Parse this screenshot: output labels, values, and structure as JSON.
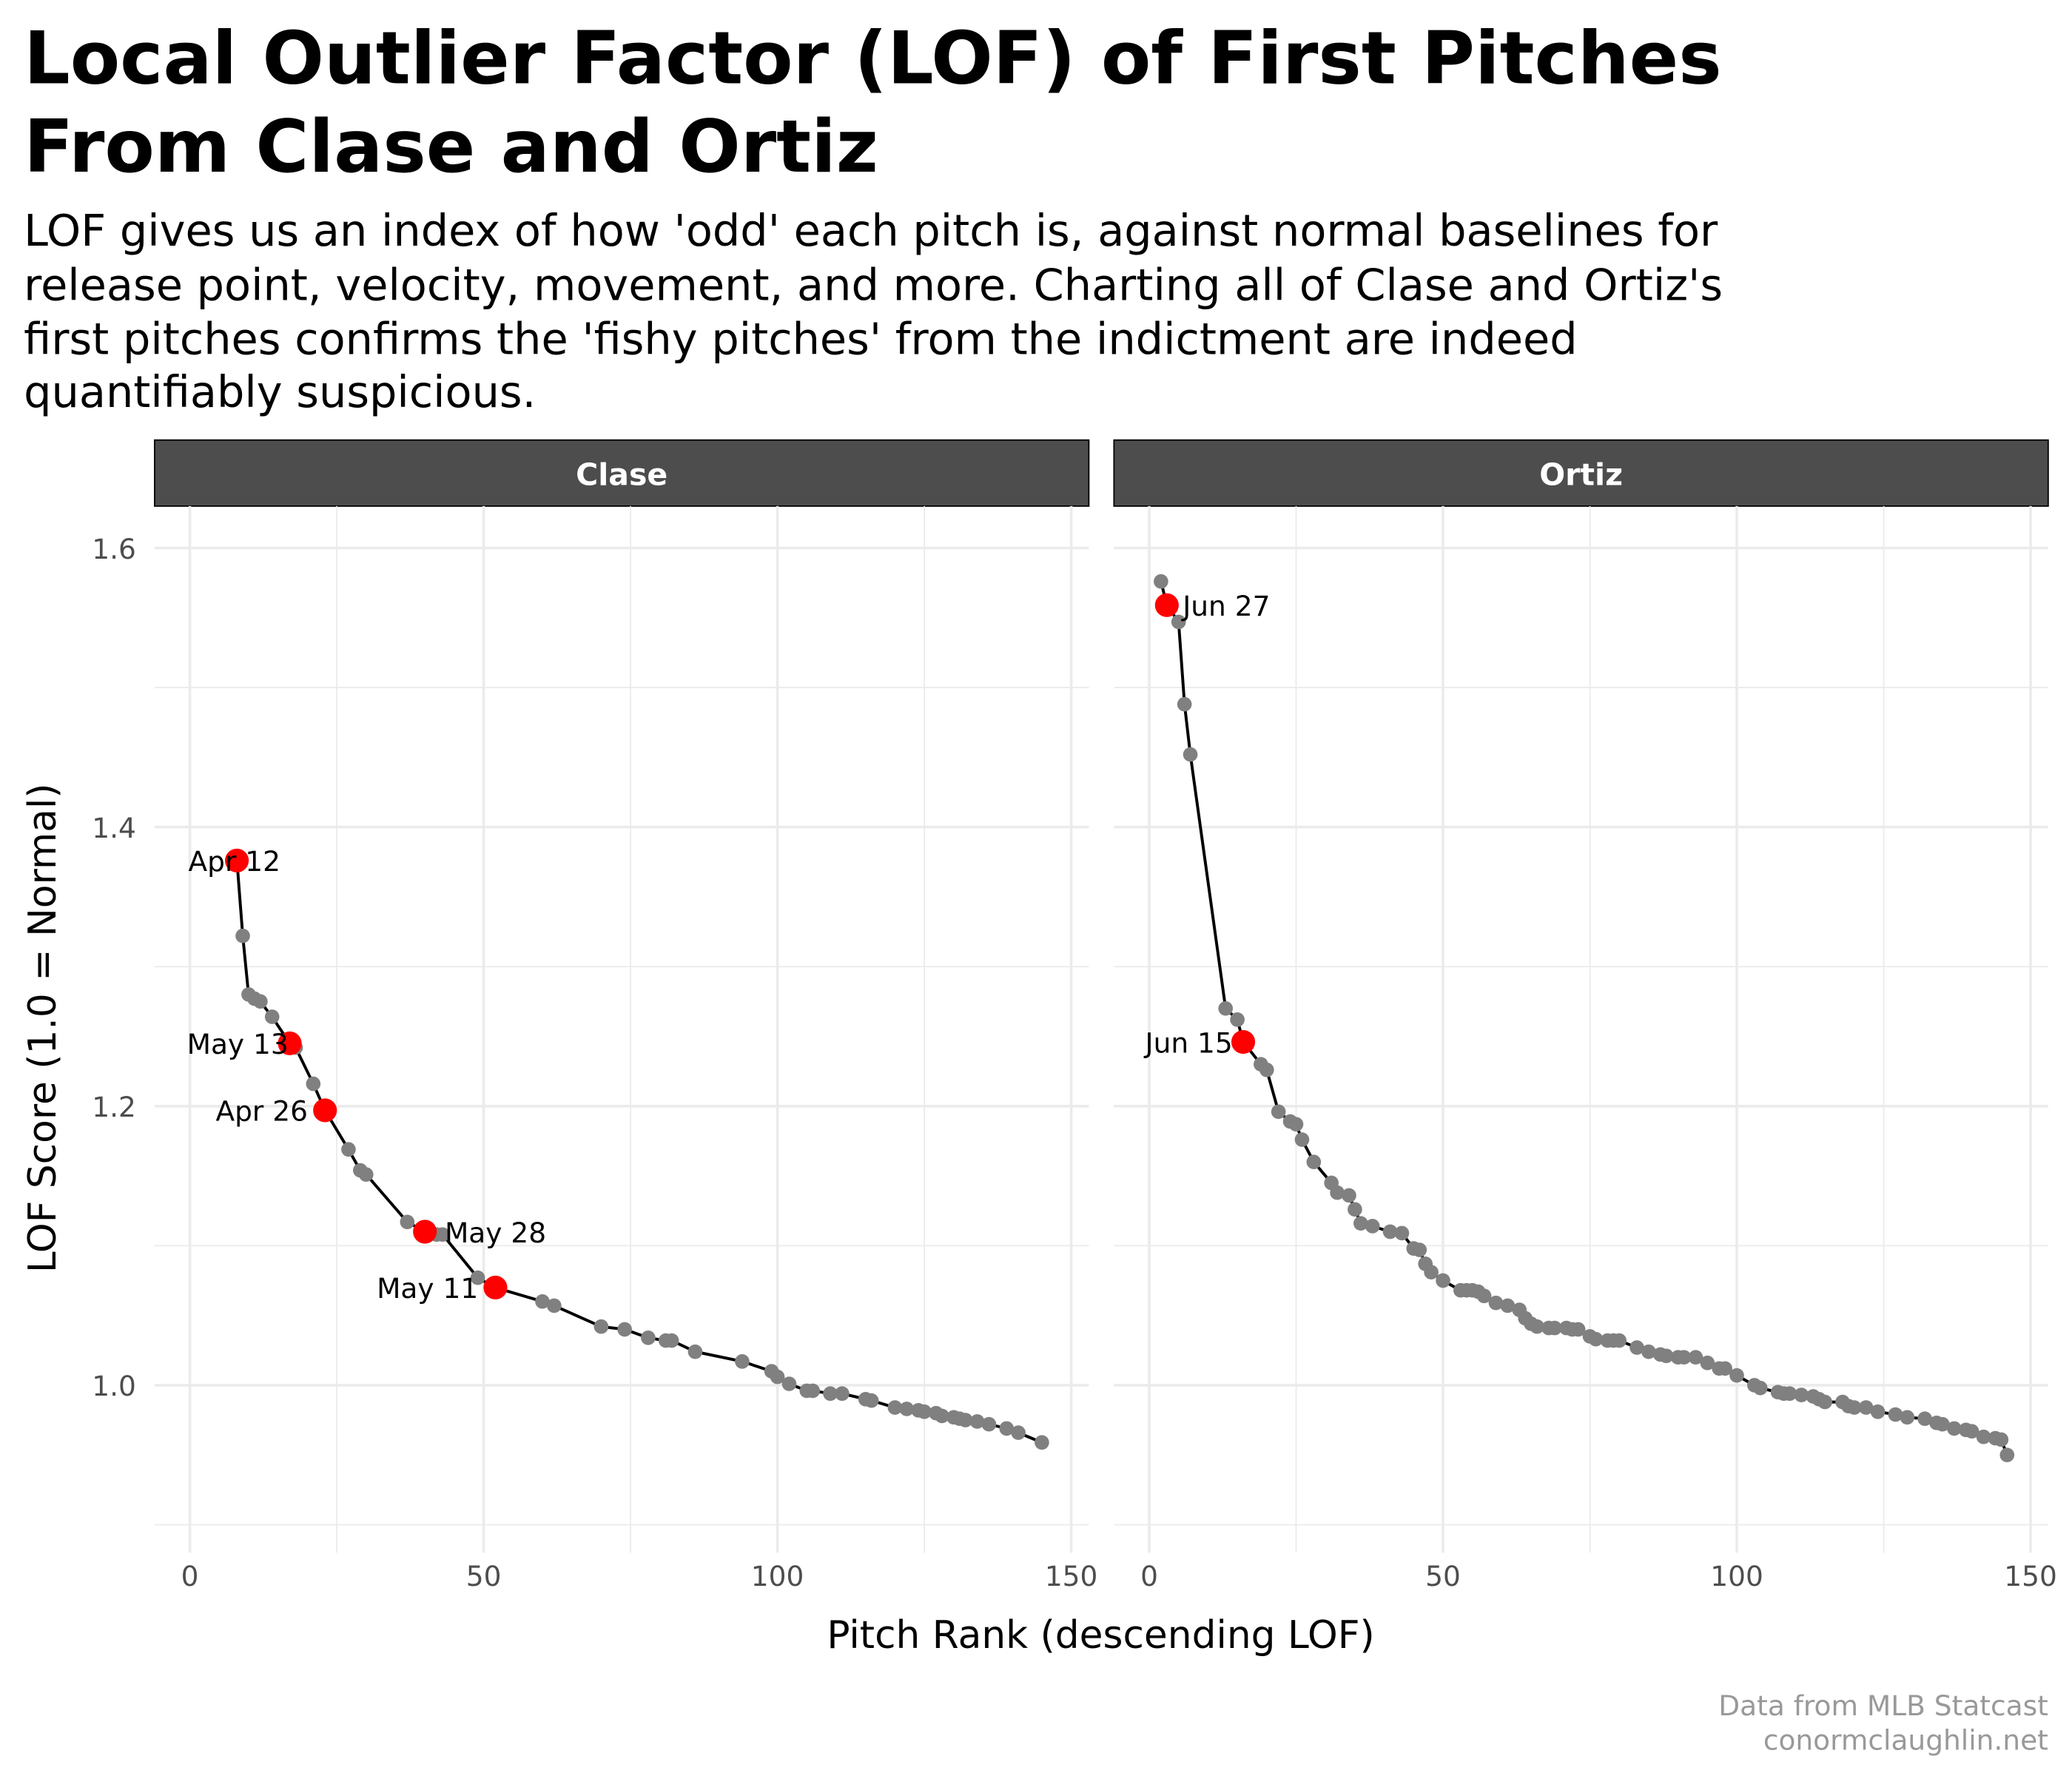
{
  "title_lines": [
    "Local Outlier Factor (LOF) of First Pitches",
    "From Clase and Ortiz"
  ],
  "subtitle_lines": [
    "LOF gives us an index of how 'odd' each pitch is, against normal baselines for",
    "release point, velocity, movement, and more. Charting all of Clase and Ortiz's",
    "first pitches confirms the 'fishy pitches' from the indictment are indeed",
    "quantifiably suspicious."
  ],
  "caption_lines": [
    "Data from MLB Statcast",
    "conormclaughlin.net"
  ],
  "colors": {
    "normal_point": "#808080",
    "flagged_point": "#ff0000",
    "line": "#000000",
    "strip_bg": "#4d4d4d"
  },
  "chart_data": [
    {
      "type": "line",
      "panel": "Clase",
      "xlabel": "Pitch Rank (descending LOF)",
      "ylabel": "LOF Score (1.0 = Normal)",
      "xlim": [
        -6,
        153
      ],
      "ylim": [
        0.88,
        1.63
      ],
      "xticks": [
        0,
        50,
        100,
        150
      ],
      "yticks": [
        1.0,
        1.2,
        1.4,
        1.6
      ],
      "grid": true,
      "points": [
        {
          "x": 8,
          "y": 1.376,
          "flag": true,
          "label": "Apr 12"
        },
        {
          "x": 9,
          "y": 1.322
        },
        {
          "x": 10,
          "y": 1.28
        },
        {
          "x": 11,
          "y": 1.277
        },
        {
          "x": 12,
          "y": 1.275
        },
        {
          "x": 14,
          "y": 1.264
        },
        {
          "x": 17,
          "y": 1.245,
          "flag": true,
          "label": "May 13"
        },
        {
          "x": 18,
          "y": 1.242
        },
        {
          "x": 21,
          "y": 1.216
        },
        {
          "x": 23,
          "y": 1.197,
          "flag": true,
          "label": "Apr 26"
        },
        {
          "x": 27,
          "y": 1.169
        },
        {
          "x": 29,
          "y": 1.154
        },
        {
          "x": 30,
          "y": 1.151
        },
        {
          "x": 37,
          "y": 1.117
        },
        {
          "x": 40,
          "y": 1.11,
          "flag": true,
          "label": "May 28"
        },
        {
          "x": 42,
          "y": 1.108
        },
        {
          "x": 43,
          "y": 1.108
        },
        {
          "x": 49,
          "y": 1.077
        },
        {
          "x": 52,
          "y": 1.07,
          "flag": true,
          "label": "May 11"
        },
        {
          "x": 60,
          "y": 1.06
        },
        {
          "x": 62,
          "y": 1.057
        },
        {
          "x": 70,
          "y": 1.042
        },
        {
          "x": 74,
          "y": 1.04
        },
        {
          "x": 78,
          "y": 1.034
        },
        {
          "x": 81,
          "y": 1.032
        },
        {
          "x": 82,
          "y": 1.032
        },
        {
          "x": 86,
          "y": 1.024
        },
        {
          "x": 94,
          "y": 1.017
        },
        {
          "x": 99,
          "y": 1.01
        },
        {
          "x": 100,
          "y": 1.006
        },
        {
          "x": 102,
          "y": 1.001
        },
        {
          "x": 105,
          "y": 0.996
        },
        {
          "x": 106,
          "y": 0.996
        },
        {
          "x": 109,
          "y": 0.994
        },
        {
          "x": 111,
          "y": 0.994
        },
        {
          "x": 115,
          "y": 0.99
        },
        {
          "x": 116,
          "y": 0.989
        },
        {
          "x": 120,
          "y": 0.984
        },
        {
          "x": 122,
          "y": 0.983
        },
        {
          "x": 124,
          "y": 0.982
        },
        {
          "x": 125,
          "y": 0.981
        },
        {
          "x": 127,
          "y": 0.98
        },
        {
          "x": 128,
          "y": 0.978
        },
        {
          "x": 130,
          "y": 0.977
        },
        {
          "x": 131,
          "y": 0.976
        },
        {
          "x": 132,
          "y": 0.975
        },
        {
          "x": 134,
          "y": 0.974
        },
        {
          "x": 136,
          "y": 0.972
        },
        {
          "x": 139,
          "y": 0.969
        },
        {
          "x": 141,
          "y": 0.966
        },
        {
          "x": 145,
          "y": 0.959
        }
      ]
    },
    {
      "type": "line",
      "panel": "Ortiz",
      "xlabel": "Pitch Rank (descending LOF)",
      "ylabel": "LOF Score (1.0 = Normal)",
      "xlim": [
        -6,
        153
      ],
      "ylim": [
        0.88,
        1.63
      ],
      "xticks": [
        0,
        50,
        100,
        150
      ],
      "yticks": [
        1.0,
        1.2,
        1.4,
        1.6
      ],
      "grid": true,
      "points": [
        {
          "x": 2,
          "y": 1.576
        },
        {
          "x": 3,
          "y": 1.559,
          "flag": true,
          "label": "Jun 27"
        },
        {
          "x": 5,
          "y": 1.547
        },
        {
          "x": 6,
          "y": 1.488
        },
        {
          "x": 7,
          "y": 1.452
        },
        {
          "x": 13,
          "y": 1.27
        },
        {
          "x": 15,
          "y": 1.262
        },
        {
          "x": 16,
          "y": 1.246,
          "flag": true,
          "label": "Jun 15"
        },
        {
          "x": 19,
          "y": 1.23
        },
        {
          "x": 20,
          "y": 1.226
        },
        {
          "x": 22,
          "y": 1.196
        },
        {
          "x": 24,
          "y": 1.189
        },
        {
          "x": 25,
          "y": 1.187
        },
        {
          "x": 26,
          "y": 1.176
        },
        {
          "x": 28,
          "y": 1.16
        },
        {
          "x": 31,
          "y": 1.145
        },
        {
          "x": 32,
          "y": 1.138
        },
        {
          "x": 34,
          "y": 1.136
        },
        {
          "x": 35,
          "y": 1.126
        },
        {
          "x": 36,
          "y": 1.116
        },
        {
          "x": 38,
          "y": 1.114
        },
        {
          "x": 41,
          "y": 1.11
        },
        {
          "x": 43,
          "y": 1.109
        },
        {
          "x": 45,
          "y": 1.098
        },
        {
          "x": 46,
          "y": 1.097
        },
        {
          "x": 47,
          "y": 1.087
        },
        {
          "x": 48,
          "y": 1.081
        },
        {
          "x": 50,
          "y": 1.075
        },
        {
          "x": 53,
          "y": 1.068
        },
        {
          "x": 54,
          "y": 1.068
        },
        {
          "x": 55,
          "y": 1.068
        },
        {
          "x": 56,
          "y": 1.067
        },
        {
          "x": 57,
          "y": 1.064
        },
        {
          "x": 59,
          "y": 1.059
        },
        {
          "x": 61,
          "y": 1.057
        },
        {
          "x": 63,
          "y": 1.054
        },
        {
          "x": 64,
          "y": 1.048
        },
        {
          "x": 65,
          "y": 1.044
        },
        {
          "x": 66,
          "y": 1.042
        },
        {
          "x": 68,
          "y": 1.041
        },
        {
          "x": 69,
          "y": 1.041
        },
        {
          "x": 71,
          "y": 1.041
        },
        {
          "x": 72,
          "y": 1.04
        },
        {
          "x": 73,
          "y": 1.04
        },
        {
          "x": 75,
          "y": 1.035
        },
        {
          "x": 76,
          "y": 1.033
        },
        {
          "x": 78,
          "y": 1.032
        },
        {
          "x": 79,
          "y": 1.032
        },
        {
          "x": 80,
          "y": 1.032
        },
        {
          "x": 83,
          "y": 1.027
        },
        {
          "x": 85,
          "y": 1.024
        },
        {
          "x": 87,
          "y": 1.022
        },
        {
          "x": 88,
          "y": 1.021
        },
        {
          "x": 90,
          "y": 1.02
        },
        {
          "x": 91,
          "y": 1.02
        },
        {
          "x": 93,
          "y": 1.02
        },
        {
          "x": 95,
          "y": 1.016
        },
        {
          "x": 97,
          "y": 1.012
        },
        {
          "x": 98,
          "y": 1.012
        },
        {
          "x": 100,
          "y": 1.007
        },
        {
          "x": 103,
          "y": 1.0
        },
        {
          "x": 104,
          "y": 0.998
        },
        {
          "x": 107,
          "y": 0.995
        },
        {
          "x": 108,
          "y": 0.994
        },
        {
          "x": 109,
          "y": 0.994
        },
        {
          "x": 111,
          "y": 0.993
        },
        {
          "x": 113,
          "y": 0.992
        },
        {
          "x": 114,
          "y": 0.99
        },
        {
          "x": 115,
          "y": 0.988
        },
        {
          "x": 118,
          "y": 0.988
        },
        {
          "x": 119,
          "y": 0.985
        },
        {
          "x": 120,
          "y": 0.984
        },
        {
          "x": 122,
          "y": 0.984
        },
        {
          "x": 124,
          "y": 0.981
        },
        {
          "x": 127,
          "y": 0.979
        },
        {
          "x": 129,
          "y": 0.977
        },
        {
          "x": 132,
          "y": 0.976
        },
        {
          "x": 134,
          "y": 0.973
        },
        {
          "x": 135,
          "y": 0.972
        },
        {
          "x": 137,
          "y": 0.969
        },
        {
          "x": 139,
          "y": 0.968
        },
        {
          "x": 140,
          "y": 0.967
        },
        {
          "x": 142,
          "y": 0.963
        },
        {
          "x": 144,
          "y": 0.962
        },
        {
          "x": 145,
          "y": 0.961
        },
        {
          "x": 146,
          "y": 0.95
        }
      ]
    }
  ]
}
